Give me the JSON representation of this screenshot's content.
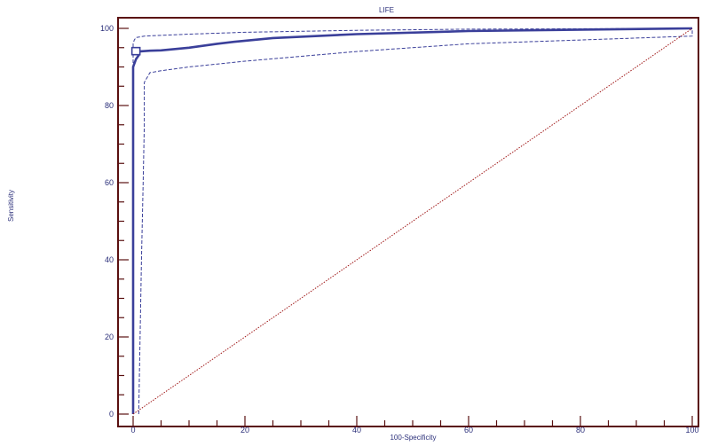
{
  "chart_data": {
    "type": "line",
    "title": "LIFE",
    "xlabel": "100-Specificity",
    "ylabel": "Sensitivity",
    "xlim": [
      0,
      100
    ],
    "ylim": [
      0,
      100
    ],
    "xticks": [
      "0",
      "20",
      "40",
      "60",
      "80",
      "100"
    ],
    "yticks": [
      "0",
      "20",
      "40",
      "60",
      "80",
      "100"
    ],
    "grid": false,
    "series": [
      {
        "role": "roc",
        "style": "solid",
        "x": [
          0,
          0,
          0.5,
          1,
          1,
          3,
          5,
          10,
          15,
          18,
          25,
          40,
          60,
          100
        ],
        "y": [
          0,
          90,
          92,
          93,
          94,
          94.2,
          94.3,
          95,
          96,
          96.5,
          97.5,
          98.5,
          99.3,
          100
        ]
      },
      {
        "role": "ci-upper",
        "style": "dashed",
        "x": [
          0,
          0,
          0.2,
          0.5,
          2,
          10,
          20,
          40,
          60,
          100
        ],
        "y": [
          0,
          96,
          97,
          97.6,
          98,
          98.5,
          99,
          99.5,
          99.8,
          100
        ]
      },
      {
        "role": "ci-lower",
        "style": "dashed",
        "x": [
          1,
          1.5,
          1.8,
          2,
          2,
          3,
          5,
          10,
          20,
          40,
          60,
          80,
          100,
          100
        ],
        "y": [
          0,
          40,
          60,
          75,
          86,
          88.5,
          89,
          90,
          91.5,
          94,
          96,
          97,
          98,
          100
        ]
      },
      {
        "role": "reference",
        "style": "dotted",
        "x": [
          0,
          100
        ],
        "y": [
          0,
          100
        ]
      }
    ],
    "marker": {
      "x": 0.5,
      "y": 94.1,
      "shape": "square"
    },
    "colors": {
      "curve": "#3a3f9a",
      "reference": "#a01818",
      "axis": "#5a1010",
      "text": "#2b2f7a",
      "box": "#ffffff"
    }
  }
}
